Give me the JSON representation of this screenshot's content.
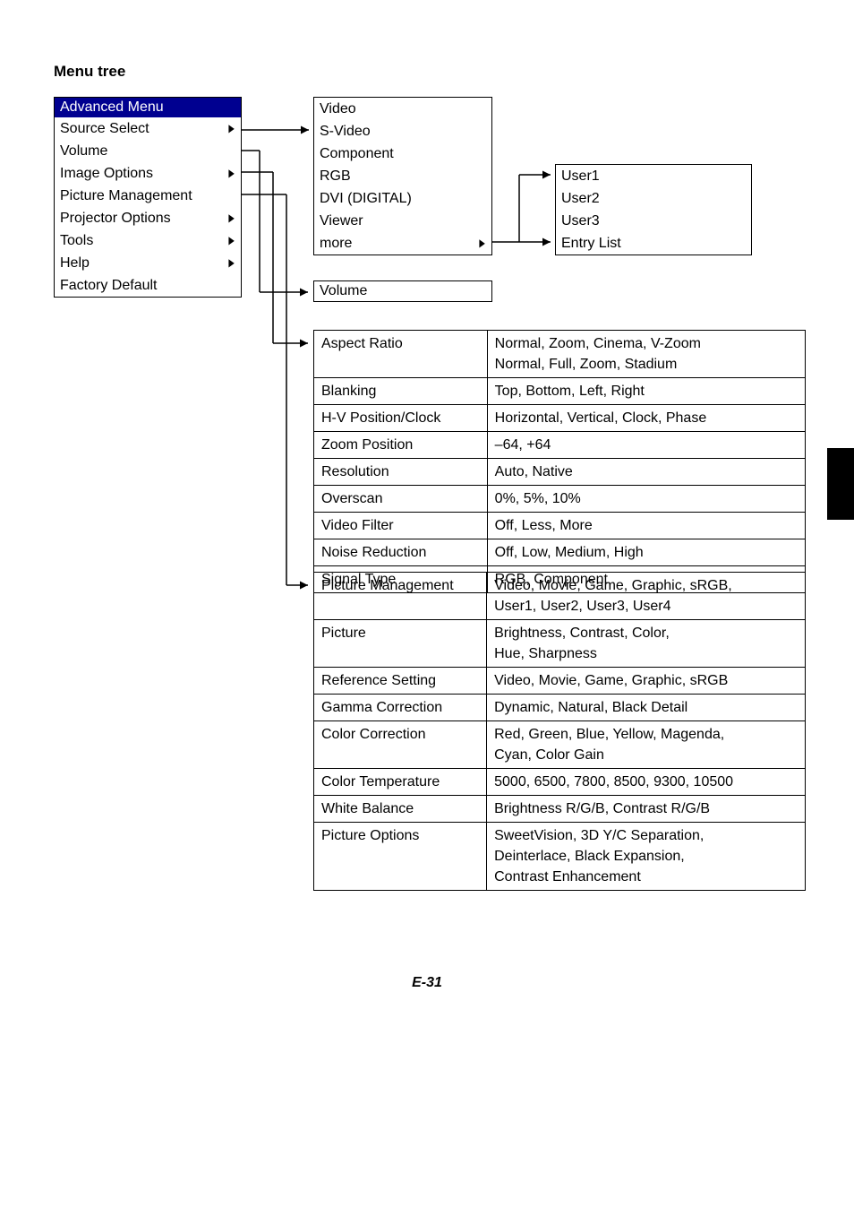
{
  "page_title": "Menu tree",
  "page_number": "E-31",
  "advanced_menu": {
    "header": "Advanced Menu",
    "items": [
      {
        "label": "Source Select",
        "has_sub": true
      },
      {
        "label": "Volume",
        "has_sub": false
      },
      {
        "label": "Image Options",
        "has_sub": true
      },
      {
        "label": "Picture Management",
        "has_sub": false
      },
      {
        "label": "Projector Options",
        "has_sub": true
      },
      {
        "label": "Tools",
        "has_sub": true
      },
      {
        "label": "Help",
        "has_sub": true
      },
      {
        "label": "Factory Default",
        "has_sub": false
      }
    ]
  },
  "source_select_menu": {
    "items": [
      {
        "label": "Video"
      },
      {
        "label": "S-Video"
      },
      {
        "label": "Component"
      },
      {
        "label": "RGB"
      },
      {
        "label": "DVI (DIGITAL)"
      },
      {
        "label": "Viewer"
      },
      {
        "label": "more",
        "has_sub": true
      }
    ]
  },
  "more_menu": {
    "items": [
      {
        "label": "User1"
      },
      {
        "label": "User2"
      },
      {
        "label": "User3"
      },
      {
        "label": "Entry List"
      }
    ]
  },
  "volume_box": {
    "label": "Volume"
  },
  "image_options_table": {
    "rows": [
      {
        "label": "Aspect Ratio",
        "value": "Normal, Zoom, Cinema, V-Zoom\nNormal, Full, Zoom, Stadium"
      },
      {
        "label": "Blanking",
        "value": "Top, Bottom, Left, Right"
      },
      {
        "label": "H-V Position/Clock",
        "value": "Horizontal, Vertical, Clock, Phase"
      },
      {
        "label": "Zoom Position",
        "value": "–64, +64"
      },
      {
        "label": "Resolution",
        "value": "Auto, Native"
      },
      {
        "label": "Overscan",
        "value": "0%, 5%, 10%"
      },
      {
        "label": "Video Filter",
        "value": "Off, Less, More"
      },
      {
        "label": "Noise Reduction",
        "value": "Off, Low, Medium, High"
      },
      {
        "label": "Signal Type",
        "value": "RGB, Component"
      }
    ]
  },
  "picture_mgmt_table": {
    "rows": [
      {
        "label": "Picture Management",
        "value": "Video, Movie, Game, Graphic, sRGB,\nUser1, User2, User3, User4"
      },
      {
        "label": "Picture",
        "value": "Brightness, Contrast, Color,\nHue, Sharpness"
      },
      {
        "label": "Reference Setting",
        "value": "Video, Movie, Game, Graphic, sRGB"
      },
      {
        "label": "Gamma Correction",
        "value": "Dynamic, Natural, Black Detail"
      },
      {
        "label": "Color Correction",
        "value": "Red, Green, Blue, Yellow, Magenda,\nCyan, Color Gain"
      },
      {
        "label": "Color Temperature",
        "value": "5000, 6500, 7800, 8500, 9300, 10500"
      },
      {
        "label": "White Balance",
        "value": "Brightness R/G/B, Contrast R/G/B"
      },
      {
        "label": "Picture Options",
        "value": "SweetVision, 3D Y/C Separation,\nDeinterlace, Black Expansion,\nContrast Enhancement"
      }
    ]
  },
  "colors": {
    "header_bg": "#000090",
    "border": "#000000",
    "bg": "#ffffff",
    "side_tab": "#000000"
  }
}
